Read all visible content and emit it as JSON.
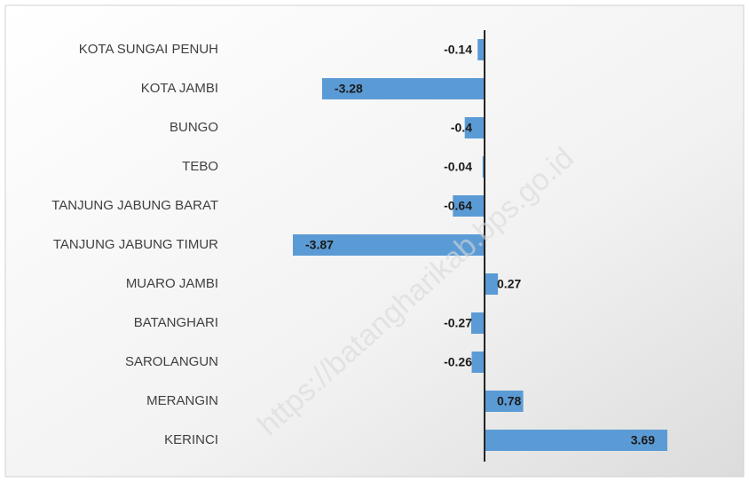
{
  "chart_data": {
    "type": "bar",
    "orientation": "horizontal",
    "categories": [
      "KOTA SUNGAI PENUH",
      "KOTA JAMBI",
      "BUNGO",
      "TEBO",
      "TANJUNG JABUNG BARAT",
      "TANJUNG JABUNG TIMUR",
      "MUARO JAMBI",
      "BATANGHARI",
      "SAROLANGUN",
      "MERANGIN",
      "KERINCI"
    ],
    "values": [
      -0.14,
      -3.28,
      -0.4,
      -0.04,
      -0.64,
      -3.87,
      0.27,
      -0.27,
      -0.26,
      0.78,
      3.69
    ],
    "color": "#5b9bd5",
    "watermark": "https://batangharikab.bps.go.id"
  }
}
